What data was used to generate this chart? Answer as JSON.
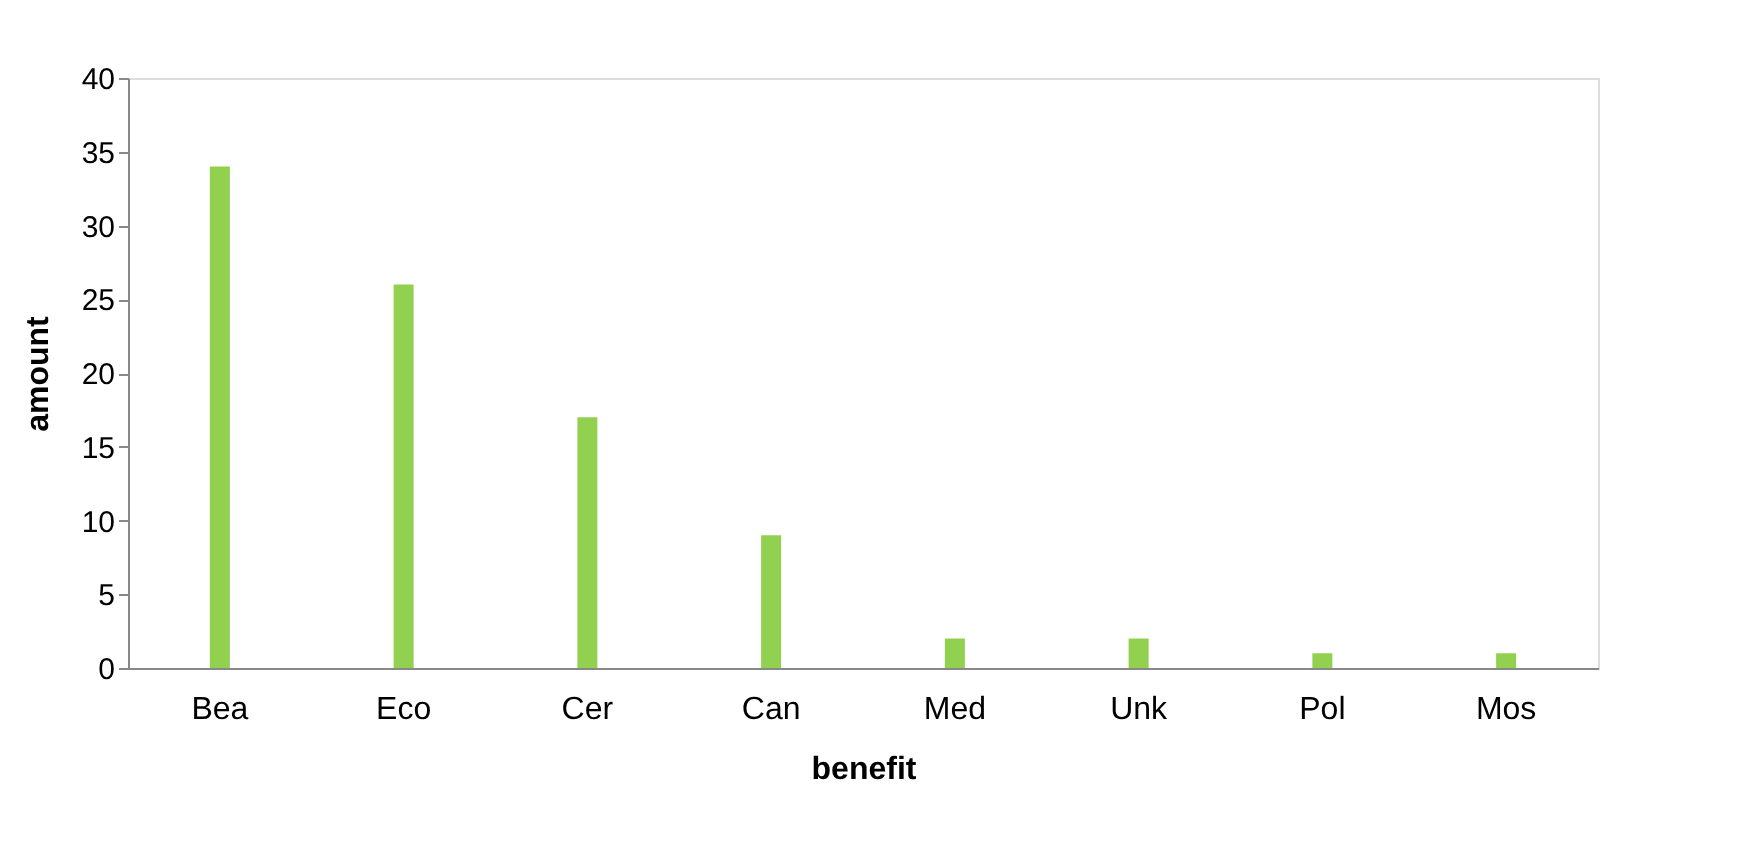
{
  "chart_data": {
    "type": "bar",
    "xlabel": "benefit",
    "ylabel": "amount",
    "categories": [
      "Bea",
      "Eco",
      "Cer",
      "Can",
      "Med",
      "Unk",
      "Pol",
      "Mos"
    ],
    "values": [
      34,
      26,
      17,
      9,
      2,
      2,
      1,
      1
    ],
    "color": "#92d050",
    "ylim": [
      0,
      40
    ],
    "yticks": [
      0,
      5,
      10,
      15,
      20,
      25,
      30,
      35,
      40
    ],
    "grid": false
  }
}
